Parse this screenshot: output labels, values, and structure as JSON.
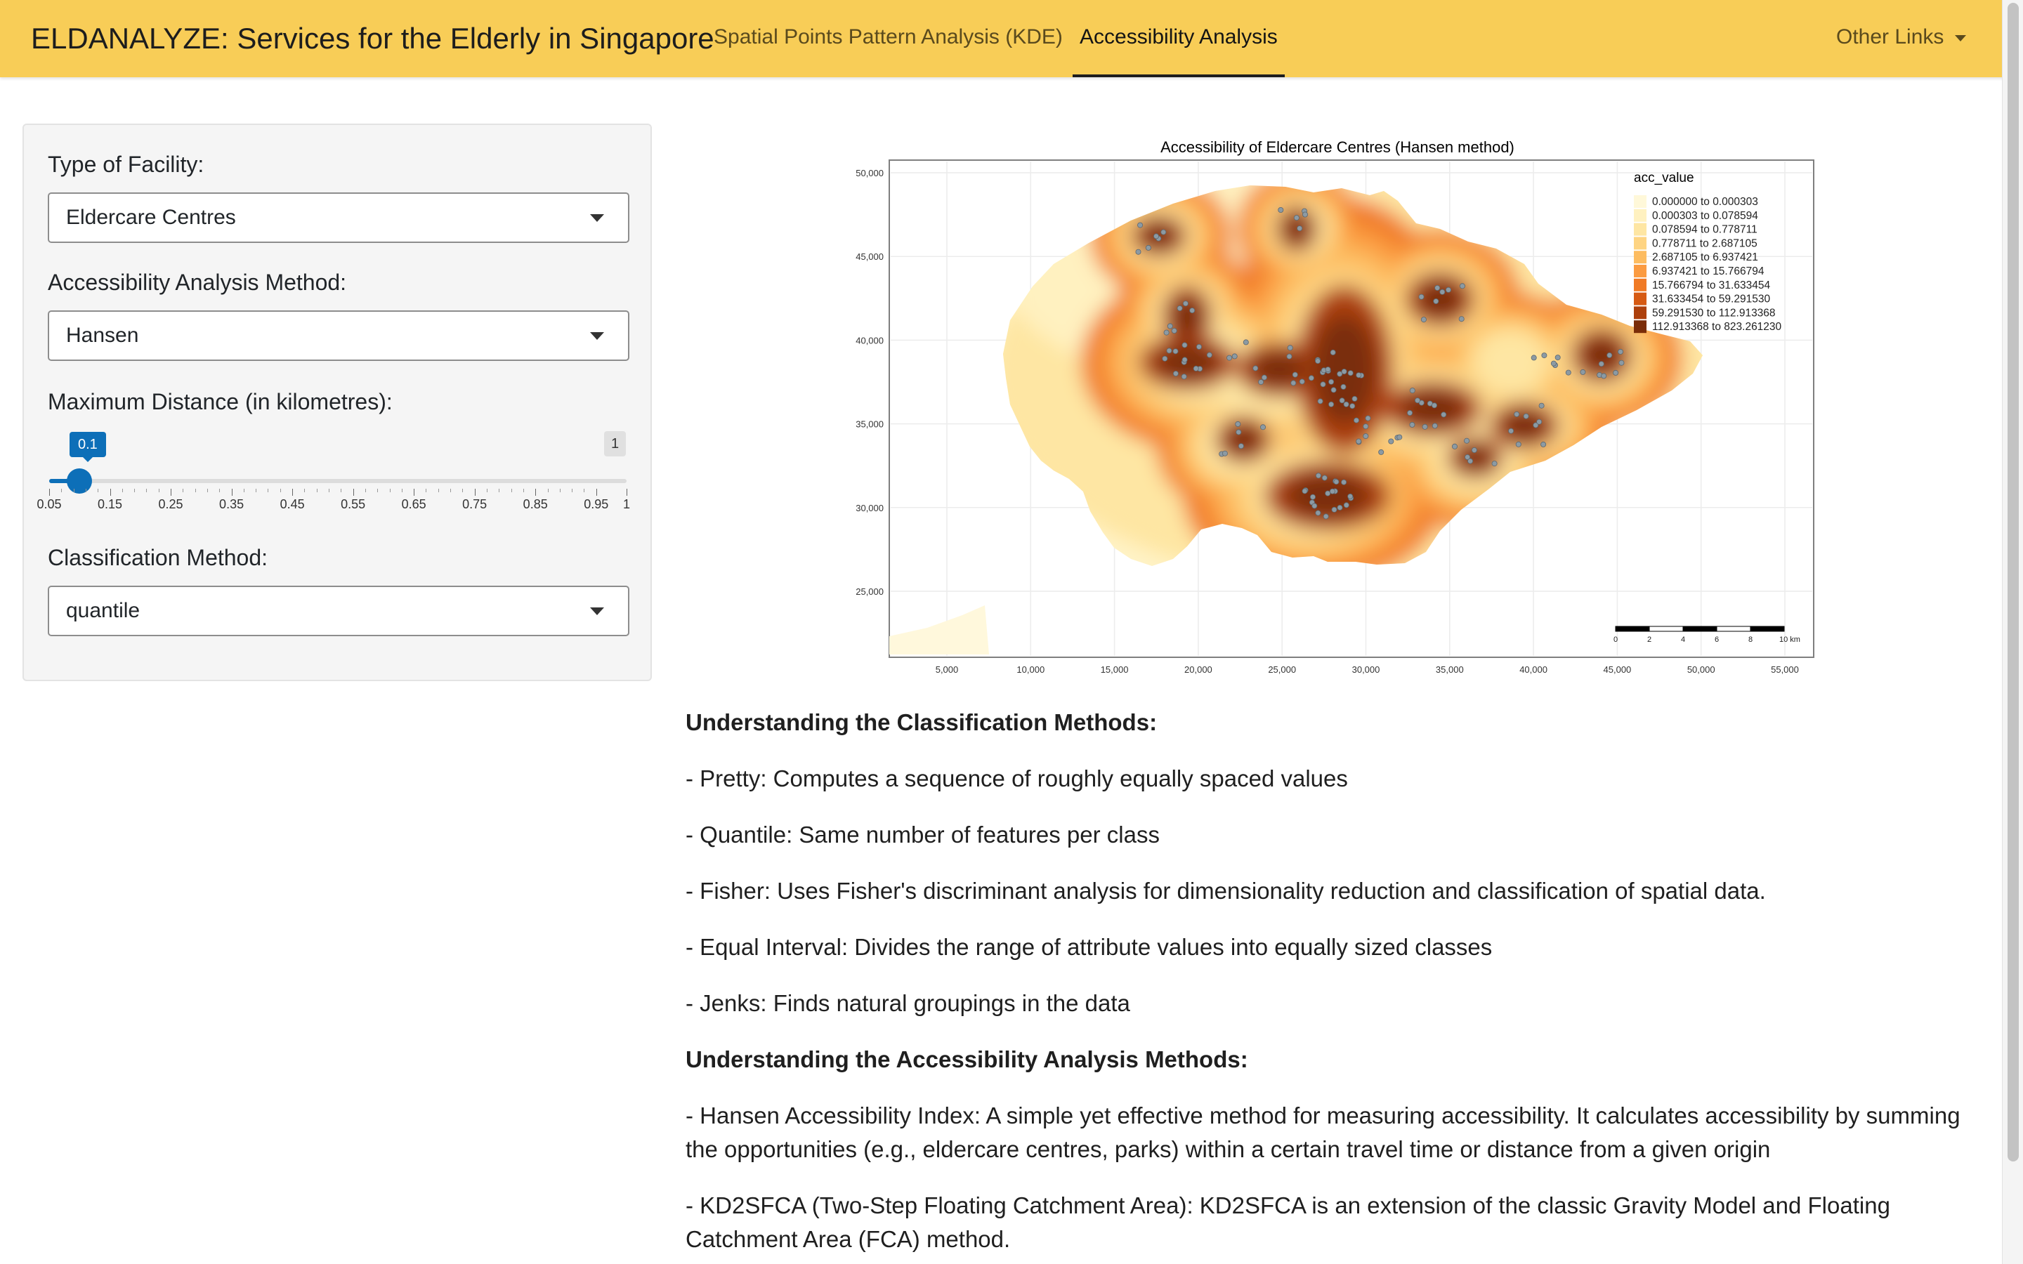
{
  "navbar": {
    "brand": "ELDANALYZE: Services for the Elderly in Singapore",
    "tabs": [
      {
        "label": "Spatial Points Pattern Analysis (KDE)",
        "active": false
      },
      {
        "label": "Accessibility Analysis",
        "active": true
      }
    ],
    "other_links": "Other Links"
  },
  "sidebar": {
    "facility": {
      "label": "Type of Facility:",
      "value": "Eldercare Centres"
    },
    "method": {
      "label": "Accessibility Analysis Method:",
      "value": "Hansen"
    },
    "distance": {
      "label": "Maximum Distance (in kilometres):",
      "value": 0.1,
      "value_label": "0.1",
      "max_label": "1",
      "min": 0.05,
      "max": 1,
      "ticks": [
        "0.05",
        "0.15",
        "0.25",
        "0.35",
        "0.45",
        "0.55",
        "0.65",
        "0.75",
        "0.85",
        "0.95",
        "1"
      ]
    },
    "classification": {
      "label": "Classification Method:",
      "value": "quantile"
    }
  },
  "map": {
    "title": "Accessibility of Eldercare Centres (Hansen method)",
    "legend_title": "acc_value",
    "legend": [
      {
        "label": "0.000000 to 0.000303",
        "color": "#fff8d9"
      },
      {
        "label": "0.000303 to 0.078594",
        "color": "#fff1c0"
      },
      {
        "label": "0.078594 to 0.778711",
        "color": "#fee6a3"
      },
      {
        "label": "0.778711 to 2.687105",
        "color": "#fed482"
      },
      {
        "label": "2.687105 to 6.937421",
        "color": "#fdbc60"
      },
      {
        "label": "6.937421 to 15.766794",
        "color": "#fb9b41"
      },
      {
        "label": "15.766794 to 31.633454",
        "color": "#f07a25"
      },
      {
        "label": "31.633454 to 59.291530",
        "color": "#d65a13"
      },
      {
        "label": "59.291530 to 112.913368",
        "color": "#ad400c"
      },
      {
        "label": "112.913368 to 823.261230",
        "color": "#7a2d09"
      }
    ],
    "x_ticks": [
      "5,000",
      "10,000",
      "15,000",
      "20,000",
      "25,000",
      "30,000",
      "35,000",
      "40,000",
      "45,000",
      "50,000",
      "55,000"
    ],
    "y_ticks": [
      "50,000",
      "45,000",
      "40,000",
      "35,000",
      "30,000",
      "25,000"
    ],
    "scale_labels": [
      "0",
      "2",
      "4",
      "6",
      "8",
      "10 km"
    ]
  },
  "content": {
    "classification_heading": "Understanding the Classification Methods:",
    "classification_items": [
      "- Pretty: Computes a sequence of roughly equally spaced values",
      "- Quantile: Same number of features per class",
      "- Fisher: Uses Fisher's discriminant analysis for dimensionality reduction and classification of spatial data.",
      "- Equal Interval: Divides the range of attribute values into equally sized classes",
      "- Jenks: Finds natural groupings in the data"
    ],
    "accessibility_heading": "Understanding the Accessibility Analysis Methods:",
    "accessibility_items": [
      "- Hansen Accessibility Index: A simple yet effective method for measuring accessibility. It calculates accessibility by summing the opportunities (e.g., eldercare centres, parks) within a certain travel time or distance from a given origin",
      "- KD2SFCA (Two-Step Floating Catchment Area): KD2SFCA is an extension of the classic Gravity Model and Floating Catchment Area (FCA) method."
    ]
  }
}
